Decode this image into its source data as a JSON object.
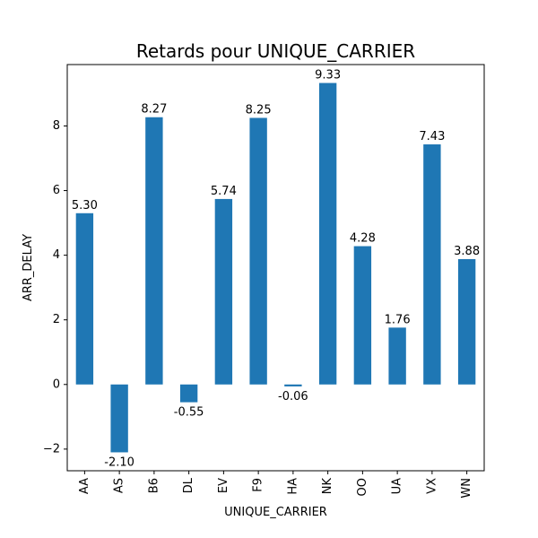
{
  "chart_data": {
    "type": "bar",
    "title": "Retards pour UNIQUE_CARRIER",
    "xlabel": "UNIQUE_CARRIER",
    "ylabel": "ARR_DELAY",
    "categories": [
      "AA",
      "AS",
      "B6",
      "DL",
      "EV",
      "F9",
      "HA",
      "NK",
      "OO",
      "UA",
      "VX",
      "WN"
    ],
    "values": [
      5.3,
      -2.1,
      8.27,
      -0.55,
      5.74,
      8.25,
      -0.06,
      9.33,
      4.28,
      1.76,
      7.43,
      3.88
    ],
    "value_labels": [
      "5.30",
      "-2.10",
      "8.27",
      "-0.55",
      "5.74",
      "8.25",
      "-0.06",
      "9.33",
      "4.28",
      "1.76",
      "7.43",
      "3.88"
    ],
    "ylim": [
      -2.67,
      9.9
    ],
    "yticks": [
      -2,
      0,
      2,
      4,
      6,
      8
    ],
    "ytick_labels": [
      "−2",
      "0",
      "2",
      "4",
      "6",
      "8"
    ],
    "grid": false,
    "bar_color": "#1f77b4"
  }
}
